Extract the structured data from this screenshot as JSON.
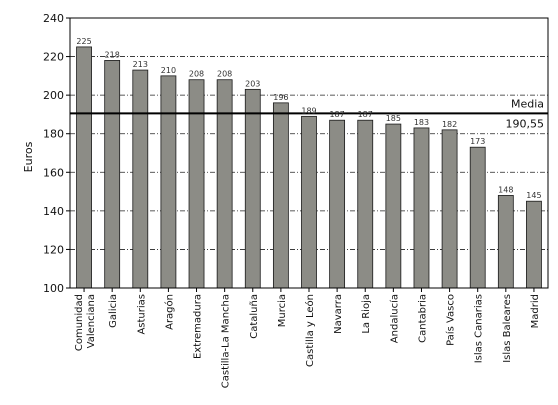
{
  "chart_data": {
    "type": "bar",
    "ylabel": "Euros",
    "ylim": [
      100,
      240
    ],
    "yticks": [
      100,
      120,
      140,
      160,
      180,
      200,
      220,
      240
    ],
    "grid": "horizontal dash-dot",
    "categories": [
      "Comunidad Valenciana",
      "Galicia",
      "Asturias",
      "Aragón",
      "Extremadura",
      "Castilla-La Mancha",
      "Cataluña",
      "Murcia",
      "Castilla y León",
      "Navarra",
      "La Rioja",
      "Andalucía",
      "Cantabria",
      "País Vasco",
      "Islas Canarias",
      "Islas Baleares",
      "Madrid"
    ],
    "category_lines": [
      [
        "Comunidad",
        "Valenciana"
      ],
      [
        "Galicia"
      ],
      [
        "Asturias"
      ],
      [
        "Aragón"
      ],
      [
        "Extremadura"
      ],
      [
        "Castilla-La Mancha"
      ],
      [
        "Cataluña"
      ],
      [
        "Murcia"
      ],
      [
        "Castilla y León"
      ],
      [
        "Navarra"
      ],
      [
        "La Rioja"
      ],
      [
        "Andalucía"
      ],
      [
        "Cantabria"
      ],
      [
        "País Vasco"
      ],
      [
        "Islas Canarias"
      ],
      [
        "Islas Baleares"
      ],
      [
        "Madrid"
      ]
    ],
    "values": [
      225,
      218,
      213,
      210,
      208,
      208,
      203,
      196,
      189,
      187,
      187,
      185,
      183,
      182,
      173,
      148,
      145
    ],
    "reference_line": {
      "label": "Media",
      "value": 190.55,
      "value_label": "190,55"
    },
    "colors": {
      "bar": "#8c8c86",
      "bar_stroke": "#1a1a1a",
      "grid": "#222222",
      "reference": "#000000"
    }
  }
}
